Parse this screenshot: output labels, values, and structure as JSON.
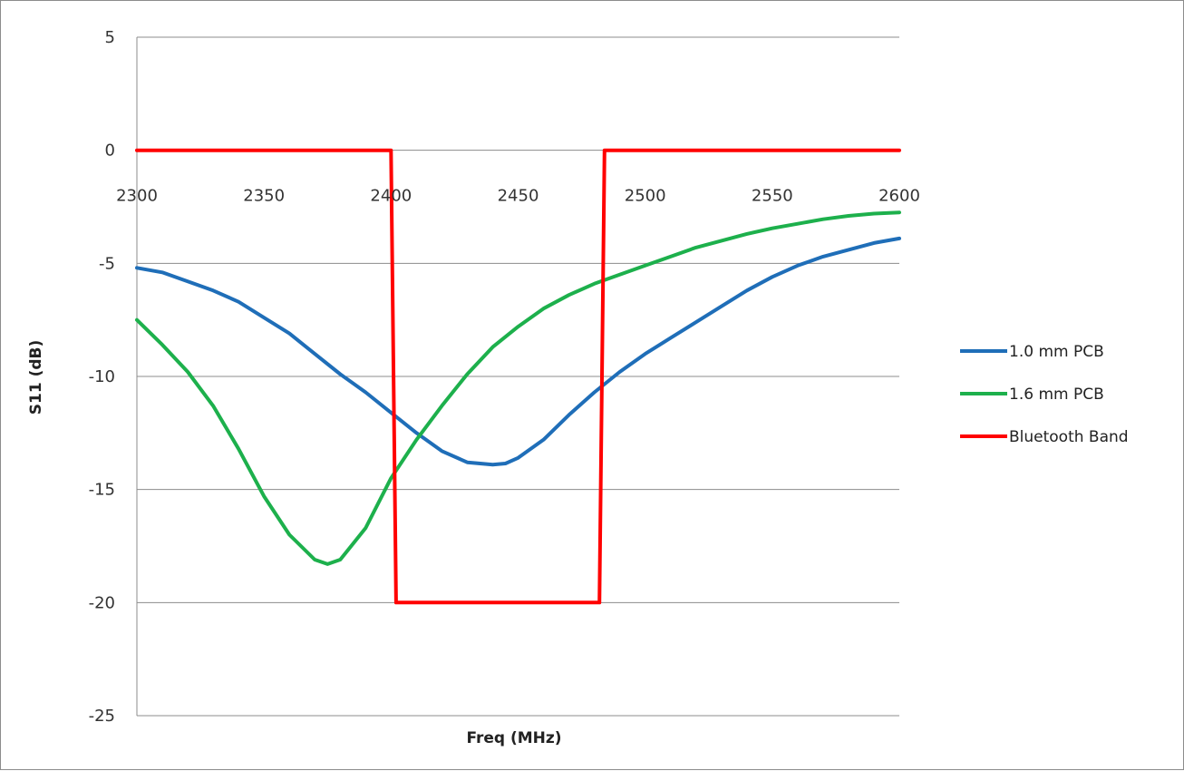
{
  "chart_data": {
    "type": "line",
    "title": "",
    "xlabel": "Freq (MHz)",
    "ylabel": "S11 (dB)",
    "xlim": [
      2300,
      2600
    ],
    "ylim": [
      -25,
      5
    ],
    "x_ticks": [
      "2300",
      "2350",
      "2400",
      "2450",
      "2500",
      "2550",
      "2600"
    ],
    "y_ticks": [
      "5",
      "0",
      "-5",
      "-10",
      "-15",
      "-20",
      "-25"
    ],
    "x_tick_values": [
      2300,
      2350,
      2400,
      2450,
      2500,
      2550,
      2600
    ],
    "y_tick_values": [
      5,
      0,
      -5,
      -10,
      -15,
      -20,
      -25
    ],
    "grid": true,
    "legend_position": "right",
    "series": [
      {
        "name": "1.0 mm PCB",
        "color": "#1f6eb8",
        "x": [
          2300,
          2310,
          2320,
          2330,
          2340,
          2350,
          2360,
          2370,
          2380,
          2390,
          2400,
          2410,
          2420,
          2430,
          2440,
          2445,
          2450,
          2460,
          2470,
          2480,
          2490,
          2500,
          2510,
          2520,
          2530,
          2540,
          2550,
          2560,
          2570,
          2580,
          2590,
          2600
        ],
        "y": [
          -5.2,
          -5.4,
          -5.8,
          -6.2,
          -6.7,
          -7.4,
          -8.1,
          -9.0,
          -9.9,
          -10.7,
          -11.6,
          -12.5,
          -13.3,
          -13.8,
          -13.9,
          -13.85,
          -13.6,
          -12.8,
          -11.7,
          -10.7,
          -9.8,
          -9.0,
          -8.3,
          -7.6,
          -6.9,
          -6.2,
          -5.6,
          -5.1,
          -4.7,
          -4.4,
          -4.1,
          -3.9
        ]
      },
      {
        "name": "1.6 mm PCB",
        "color": "#1db04c",
        "x": [
          2300,
          2310,
          2320,
          2330,
          2340,
          2350,
          2360,
          2370,
          2375,
          2380,
          2390,
          2400,
          2410,
          2420,
          2430,
          2440,
          2450,
          2460,
          2470,
          2480,
          2490,
          2500,
          2510,
          2520,
          2530,
          2540,
          2550,
          2560,
          2570,
          2580,
          2590,
          2600
        ],
        "y": [
          -7.5,
          -8.6,
          -9.8,
          -11.3,
          -13.2,
          -15.3,
          -17.0,
          -18.1,
          -18.3,
          -18.1,
          -16.7,
          -14.5,
          -12.8,
          -11.3,
          -9.9,
          -8.7,
          -7.8,
          -7.0,
          -6.4,
          -5.9,
          -5.5,
          -5.1,
          -4.7,
          -4.3,
          -4.0,
          -3.7,
          -3.45,
          -3.25,
          -3.05,
          -2.9,
          -2.8,
          -2.75
        ]
      },
      {
        "name": "Bluetooth Band",
        "color": "#ff0000",
        "x": [
          2300,
          2400,
          2402,
          2482,
          2484,
          2600
        ],
        "y": [
          0,
          0,
          -20,
          -20,
          0,
          0
        ]
      }
    ]
  }
}
